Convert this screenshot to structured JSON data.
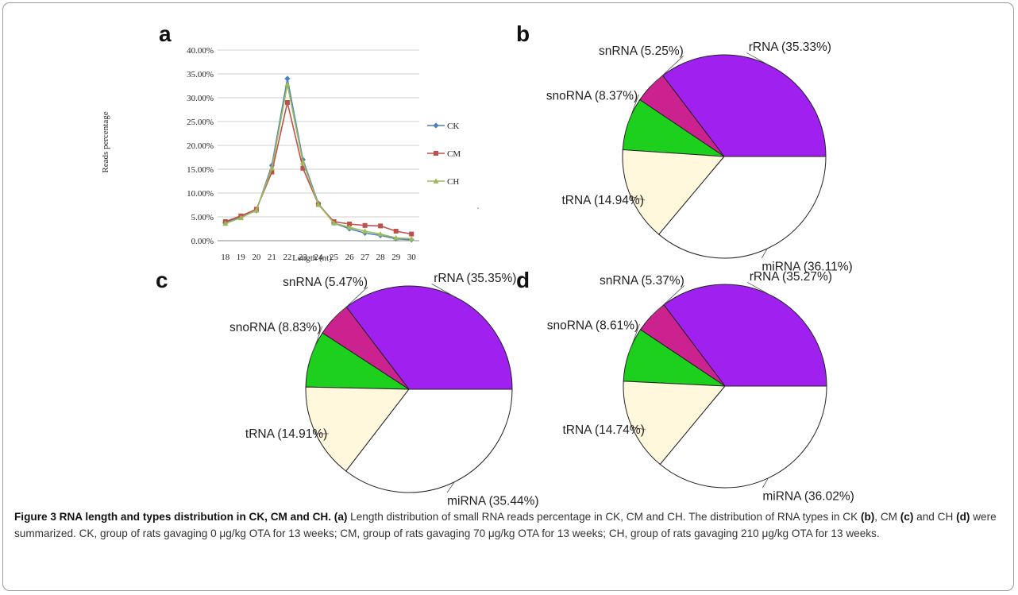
{
  "chart_data": [
    {
      "panel": "a",
      "type": "line",
      "xlabel": "Length (nt)",
      "ylabel": "Reads percentage",
      "x": [
        18,
        19,
        20,
        21,
        22,
        23,
        24,
        25,
        26,
        27,
        28,
        29,
        30
      ],
      "yticks": [
        "0.00%",
        "5.00%",
        "10.00%",
        "15.00%",
        "20.00%",
        "25.00%",
        "30.00%",
        "35.00%",
        "40.00%"
      ],
      "ylim": [
        0,
        40
      ],
      "grid": true,
      "legend_position": "right",
      "series": [
        {
          "name": "CK",
          "color": "#4f81bd",
          "marker": "diamond",
          "values": [
            3.8,
            5.0,
            6.3,
            15.8,
            34.0,
            17.0,
            7.8,
            3.7,
            2.5,
            1.6,
            1.1,
            0.4,
            0.2
          ]
        },
        {
          "name": "CM",
          "color": "#c0504d",
          "marker": "square",
          "values": [
            4.0,
            5.2,
            6.6,
            14.4,
            29.0,
            15.2,
            7.6,
            4.0,
            3.5,
            3.2,
            3.1,
            2.0,
            1.4
          ]
        },
        {
          "name": "CH",
          "color": "#9bbb59",
          "marker": "triangle",
          "values": [
            3.6,
            4.8,
            6.4,
            15.2,
            32.8,
            16.5,
            7.6,
            3.7,
            2.8,
            2.0,
            1.4,
            0.6,
            0.4
          ]
        }
      ]
    },
    {
      "panel": "b",
      "type": "pie",
      "slices": [
        {
          "label": "rRNA (35.33%)",
          "value": 35.33,
          "color": "#a020f0"
        },
        {
          "label": "snRNA (5.25%)",
          "value": 5.25,
          "color": "#cc2290"
        },
        {
          "label": "snoRNA (8.37%)",
          "value": 8.37,
          "color": "#1ed01e"
        },
        {
          "label": "tRNA (14.94%)",
          "value": 14.94,
          "color": "#fff8dc"
        },
        {
          "label": "miRNA (36.11%)",
          "value": 36.11,
          "color": "#ffffff"
        }
      ]
    },
    {
      "panel": "c",
      "type": "pie",
      "slices": [
        {
          "label": "rRNA (35.35%)",
          "value": 35.35,
          "color": "#a020f0"
        },
        {
          "label": "snRNA (5.47%)",
          "value": 5.47,
          "color": "#cc2290"
        },
        {
          "label": "snoRNA (8.83%)",
          "value": 8.83,
          "color": "#1ed01e"
        },
        {
          "label": "tRNA (14.91%)",
          "value": 14.91,
          "color": "#fff8dc"
        },
        {
          "label": "miRNA (35.44%)",
          "value": 35.44,
          "color": "#ffffff"
        }
      ]
    },
    {
      "panel": "d",
      "type": "pie",
      "slices": [
        {
          "label": "rRNA (35.27%)",
          "value": 35.27,
          "color": "#a020f0"
        },
        {
          "label": "snRNA (5.37%)",
          "value": 5.37,
          "color": "#cc2290"
        },
        {
          "label": "snoRNA (8.61%)",
          "value": 8.61,
          "color": "#1ed01e"
        },
        {
          "label": "tRNA (14.74%)",
          "value": 14.74,
          "color": "#fff8dc"
        },
        {
          "label": "miRNA (36.02%)",
          "value": 36.02,
          "color": "#ffffff"
        }
      ]
    }
  ],
  "caption": {
    "title": "Figure 3 RNA length and types distribution in CK, CM and CH.",
    "s1": " (a)",
    "s2": " Length distribution of small RNA reads percentage in CK, CM and CH. The distribution of RNA types in CK ",
    "s3": "(b)",
    "s4": ", CM ",
    "s5": "(c)",
    "s6": " and CH ",
    "s7": "(d)",
    "s8": " were summarized. CK, group of rats gavaging 0 μg/kg OTA for 13 weeks; CM, group of rats gavaging 70 μg/kg OTA for 13 weeks; CH, group of rats gavaging 210 μg/kg OTA for 13 weeks."
  }
}
